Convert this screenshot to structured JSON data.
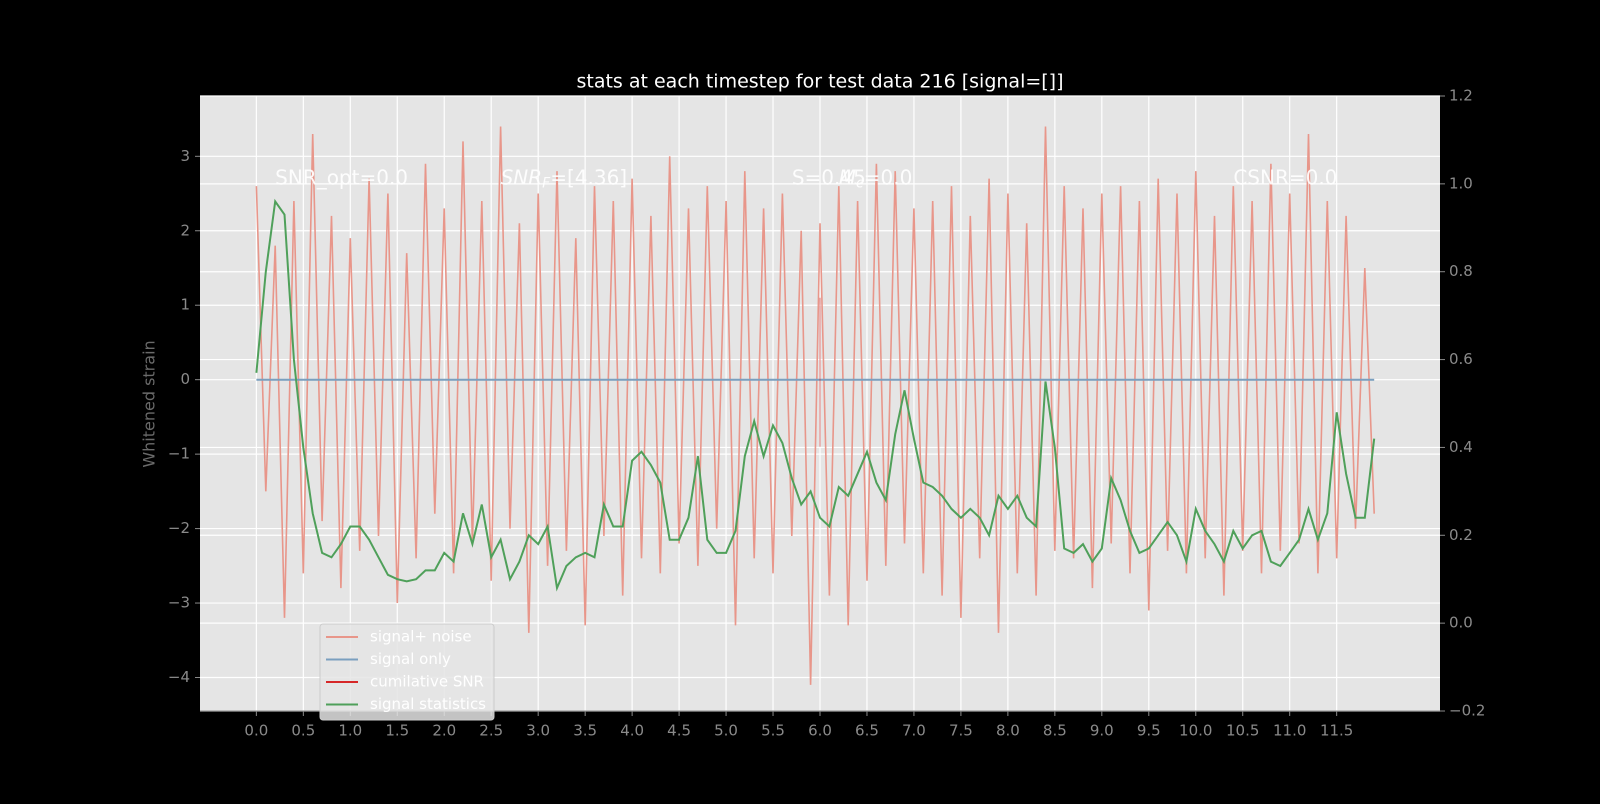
{
  "chart_data": {
    "type": "line",
    "title": "stats at each timestep for test data 216 [signal=[]]",
    "ylabel": "Whitened strain",
    "x": [
      0.0,
      0.1,
      0.2,
      0.3,
      0.4,
      0.5,
      0.6,
      0.7,
      0.8,
      0.9,
      1.0,
      1.1,
      1.2,
      1.3,
      1.4,
      1.5,
      1.6,
      1.7,
      1.8,
      1.9,
      2.0,
      2.1,
      2.2,
      2.3,
      2.4,
      2.5,
      2.6,
      2.7,
      2.8,
      2.9,
      3.0,
      3.1,
      3.2,
      3.3,
      3.4,
      3.5,
      3.6,
      3.7,
      3.8,
      3.9,
      4.0,
      4.1,
      4.2,
      4.3,
      4.4,
      4.5,
      4.6,
      4.7,
      4.8,
      4.9,
      5.0,
      5.1,
      5.2,
      5.3,
      5.4,
      5.5,
      5.6,
      5.7,
      5.8,
      5.9,
      6.0,
      6.1,
      6.2,
      6.3,
      6.4,
      6.5,
      6.6,
      6.7,
      6.8,
      6.9,
      7.0,
      7.1,
      7.2,
      7.3,
      7.4,
      7.5,
      7.6,
      7.7,
      7.8,
      7.9,
      8.0,
      8.1,
      8.2,
      8.3,
      8.4,
      8.5,
      8.6,
      8.7,
      8.8,
      8.9,
      9.0,
      9.1,
      9.2,
      9.3,
      9.4,
      9.5,
      9.6,
      9.7,
      9.8,
      9.9,
      10.0,
      10.1,
      10.2,
      10.3,
      10.4,
      10.5,
      10.6,
      10.7,
      10.8,
      10.9,
      11.0,
      11.1,
      11.2,
      11.3,
      11.4,
      11.5,
      11.6,
      11.7,
      11.8,
      11.9
    ],
    "series": [
      {
        "name": "signal+ noise",
        "color": "#e8968a",
        "values": [
          2.6,
          -1.5,
          1.8,
          -3.2,
          2.4,
          -2.6,
          3.3,
          -1.9,
          2.2,
          -2.8,
          1.9,
          -2.3,
          2.7,
          -2.1,
          2.5,
          -3.0,
          1.7,
          -2.4,
          2.9,
          -1.8,
          2.3,
          -2.6,
          3.2,
          -2.2,
          2.4,
          -2.7,
          3.4,
          -2.0,
          2.1,
          -3.4,
          2.5,
          -2.5,
          2.8,
          -2.3,
          1.9,
          -3.3,
          2.6,
          -2.1,
          2.4,
          -2.9,
          2.7,
          -2.4,
          2.2,
          -2.6,
          3.0,
          -2.2,
          2.3,
          -2.5,
          2.6,
          -2.0,
          2.4,
          -3.3,
          2.8,
          -2.4,
          2.3,
          -2.6,
          2.5,
          -2.1,
          2.0,
          -4.1,
          2.1,
          -2.9,
          2.6,
          -3.3,
          2.4,
          -2.7,
          2.9,
          -2.5,
          2.8,
          -2.2,
          2.3,
          -2.6,
          2.4,
          -2.9,
          2.6,
          -3.2,
          2.2,
          -2.4,
          2.7,
          -3.4,
          2.5,
          -2.6,
          2.1,
          -2.9,
          3.4,
          -2.3,
          2.6,
          -2.4,
          2.3,
          -2.8,
          2.5,
          -2.2,
          2.6,
          -2.6,
          2.4,
          -3.1,
          2.7,
          -2.3,
          2.5,
          -2.6,
          2.8,
          -2.4,
          2.2,
          -2.9,
          2.6,
          -2.3,
          2.4,
          -2.6,
          2.9,
          -2.3,
          2.5,
          -2.2,
          3.3,
          -2.6,
          2.4,
          -2.4,
          2.2,
          -2.0,
          1.5,
          -1.8
        ]
      },
      {
        "name": "signal only",
        "color": "#7a9fbf",
        "x": [
          0.0,
          11.9
        ],
        "values": [
          0,
          0
        ]
      },
      {
        "name": "cumilative SNR",
        "color": "#d62728",
        "x": [
          6.0,
          6.0
        ],
        "values": [
          1.1,
          -0.9
        ]
      },
      {
        "name": "signal statistics",
        "color": "#4fa05a",
        "axis": "y2",
        "values": [
          0.57,
          0.8,
          0.96,
          0.93,
          0.6,
          0.4,
          0.25,
          0.16,
          0.15,
          0.18,
          0.22,
          0.22,
          0.19,
          0.15,
          0.11,
          0.1,
          0.095,
          0.1,
          0.12,
          0.12,
          0.16,
          0.14,
          0.25,
          0.18,
          0.27,
          0.15,
          0.19,
          0.1,
          0.14,
          0.2,
          0.18,
          0.22,
          0.08,
          0.13,
          0.15,
          0.16,
          0.15,
          0.27,
          0.22,
          0.22,
          0.37,
          0.39,
          0.36,
          0.32,
          0.19,
          0.19,
          0.24,
          0.38,
          0.19,
          0.16,
          0.16,
          0.21,
          0.38,
          0.46,
          0.38,
          0.45,
          0.41,
          0.33,
          0.27,
          0.3,
          0.24,
          0.22,
          0.31,
          0.29,
          0.34,
          0.39,
          0.32,
          0.28,
          0.43,
          0.53,
          0.42,
          0.32,
          0.31,
          0.29,
          0.26,
          0.24,
          0.26,
          0.24,
          0.2,
          0.29,
          0.26,
          0.29,
          0.24,
          0.22,
          0.55,
          0.4,
          0.17,
          0.16,
          0.18,
          0.14,
          0.17,
          0.33,
          0.28,
          0.21,
          0.16,
          0.17,
          0.2,
          0.23,
          0.2,
          0.14,
          0.26,
          0.21,
          0.18,
          0.14,
          0.21,
          0.17,
          0.2,
          0.21,
          0.14,
          0.13,
          0.16,
          0.19,
          0.26,
          0.19,
          0.25,
          0.48,
          0.34,
          0.24,
          0.24,
          0.42
        ]
      }
    ],
    "annotations": [
      {
        "text": "SNR_opt=0.0"
      },
      {
        "text": "SNR",
        "sub": "F",
        "rest": "=[4.36]"
      },
      {
        "text": "S=0.45"
      },
      {
        "text": "M",
        "sub": "c",
        "rest": "=0.0"
      },
      {
        "text": "CSNR=0.0"
      }
    ],
    "xlim": [
      -0.6,
      12.6
    ],
    "ylim": [
      -4.45,
      3.81
    ],
    "y2lim": [
      -0.2,
      1.2
    ],
    "xticks": [
      {
        "value": 0,
        "label": "0.0"
      },
      0.5,
      {
        "value": 1,
        "label": "1.0"
      },
      1.5,
      {
        "value": 2,
        "label": "2.0"
      },
      2.5,
      {
        "value": 3,
        "label": "3.0"
      },
      3.5,
      {
        "value": 4,
        "label": "4.0"
      },
      4.5,
      {
        "value": 5,
        "label": "5.0"
      },
      5.5,
      {
        "value": 6,
        "label": "6.0"
      },
      6.5,
      {
        "value": 7,
        "label": "7.0"
      },
      7.5,
      {
        "value": 8,
        "label": "8.0"
      },
      8.5,
      {
        "value": 9,
        "label": "9.0"
      },
      9.5,
      {
        "value": 10,
        "label": "10.0"
      },
      10.5,
      {
        "value": 11,
        "label": "11.0"
      },
      11.5
    ],
    "yticks": [
      {
        "value": -4,
        "label": "−4"
      },
      {
        "value": -3,
        "label": "−3"
      },
      {
        "value": -2,
        "label": "−2"
      },
      {
        "value": -1,
        "label": "−1"
      },
      0,
      1,
      2,
      3
    ],
    "y2ticks": [
      {
        "value": -0.2,
        "label": "−0.2"
      },
      {
        "value": 0,
        "label": "0.0"
      },
      0.2,
      0.4,
      0.6,
      0.8,
      {
        "value": 1,
        "label": "1.0"
      },
      1.2
    ],
    "grid": true,
    "legend": "lower left"
  }
}
